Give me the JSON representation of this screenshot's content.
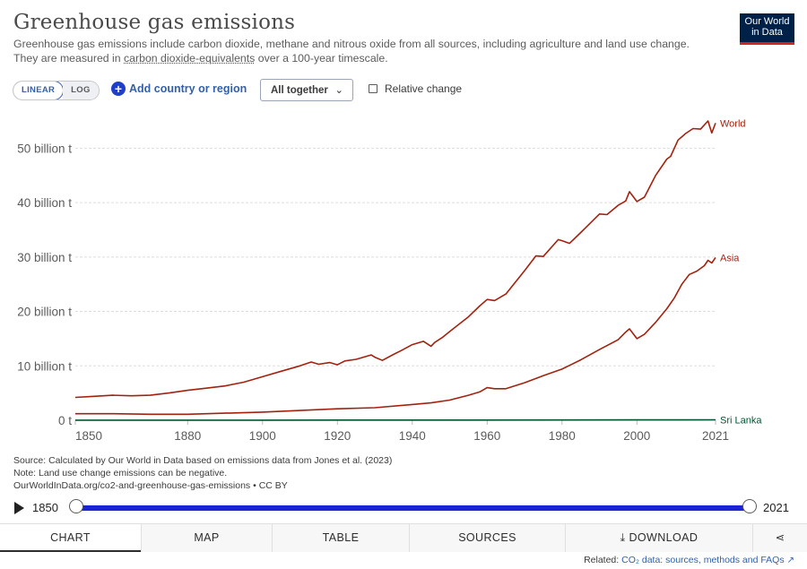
{
  "header": {
    "title": "Greenhouse gas emissions",
    "subtitle_part1": "Greenhouse gas emissions include carbon dioxide, methane and nitrous oxide from all sources, including agriculture and land use change.",
    "subtitle_part2": "They are measured in ",
    "subtitle_link": "carbon dioxide-equivalents",
    "subtitle_part3": " over a 100-year timescale.",
    "logo_line1": "Our World",
    "logo_line2": "in Data"
  },
  "controls": {
    "scale_linear": "LINEAR",
    "scale_log": "LOG",
    "add_country": "Add country or region",
    "dropdown_value": "All together",
    "relative_change": "Relative change"
  },
  "chart_data": {
    "type": "line",
    "title": "Greenhouse gas emissions",
    "ylim": [
      0,
      55
    ],
    "xlim": [
      1850,
      2021
    ],
    "y_ticks": [
      0,
      10,
      20,
      30,
      40,
      50
    ],
    "y_tick_labels": [
      "0 t",
      "10 billion t",
      "20 billion t",
      "30 billion t",
      "40 billion t",
      "50 billion t"
    ],
    "x_ticks": [
      1850,
      1880,
      1900,
      1920,
      1940,
      1960,
      1980,
      2000,
      2021
    ],
    "x_tick_labels": [
      "1850",
      "1880",
      "1900",
      "1920",
      "1940",
      "1960",
      "1980",
      "2000",
      "2021"
    ],
    "grid": "horizontal dashed",
    "legend": "labels at line ends",
    "series": [
      {
        "name": "World",
        "color": "#a2220f",
        "x": [
          1850,
          1855,
          1860,
          1865,
          1870,
          1875,
          1880,
          1885,
          1890,
          1895,
          1900,
          1905,
          1910,
          1913,
          1915,
          1918,
          1920,
          1922,
          1925,
          1929,
          1930,
          1932,
          1935,
          1937,
          1940,
          1943,
          1945,
          1946,
          1948,
          1950,
          1955,
          1958,
          1960,
          1962,
          1965,
          1970,
          1973,
          1975,
          1979,
          1980,
          1982,
          1985,
          1990,
          1992,
          1995,
          1997,
          1998,
          2000,
          2002,
          2005,
          2008,
          2009,
          2011,
          2013,
          2015,
          2017,
          2019,
          2020,
          2021
        ],
        "values": [
          4.2,
          4.4,
          4.6,
          4.5,
          4.6,
          5.0,
          5.5,
          5.9,
          6.3,
          7.0,
          8.0,
          9.0,
          10.0,
          10.7,
          10.3,
          10.6,
          10.2,
          10.9,
          11.2,
          12.0,
          11.6,
          11.0,
          12.1,
          12.8,
          13.9,
          14.5,
          13.6,
          14.3,
          15.2,
          16.3,
          19.0,
          21.0,
          22.2,
          22.0,
          23.2,
          27.5,
          30.2,
          30.1,
          33.2,
          33.0,
          32.5,
          34.5,
          37.9,
          37.8,
          39.5,
          40.3,
          42.0,
          40.2,
          41.0,
          45.0,
          48.0,
          48.5,
          51.5,
          52.7,
          53.6,
          53.5,
          55.0,
          52.8,
          54.6
        ]
      },
      {
        "name": "Asia",
        "color": "#a2220f",
        "x": [
          1850,
          1860,
          1870,
          1880,
          1890,
          1900,
          1910,
          1920,
          1930,
          1940,
          1945,
          1950,
          1955,
          1958,
          1960,
          1962,
          1965,
          1970,
          1975,
          1980,
          1985,
          1990,
          1995,
          1997,
          1998,
          2000,
          2002,
          2005,
          2008,
          2010,
          2012,
          2014,
          2016,
          2018,
          2019,
          2020,
          2021
        ],
        "values": [
          1.2,
          1.2,
          1.1,
          1.1,
          1.3,
          1.5,
          1.8,
          2.1,
          2.3,
          2.9,
          3.2,
          3.7,
          4.6,
          5.2,
          6.0,
          5.8,
          5.8,
          6.9,
          8.2,
          9.4,
          11.1,
          13.0,
          14.8,
          16.2,
          16.8,
          15.0,
          15.8,
          18.0,
          20.5,
          22.5,
          25.0,
          26.8,
          27.4,
          28.4,
          29.4,
          28.9,
          29.9
        ]
      },
      {
        "name": "Sri Lanka",
        "color": "#00552f",
        "x": [
          1850,
          1900,
          1950,
          2000,
          2021
        ],
        "values": [
          0.01,
          0.02,
          0.04,
          0.07,
          0.09
        ]
      }
    ]
  },
  "footer": {
    "source_line": "Source: Calculated by Our World in Data based on emissions data from Jones et al. (2023)",
    "note_line": "Note: Land use change emissions can be negative.",
    "url_line": "OurWorldInData.org/co2-and-greenhouse-gas-emissions • CC BY"
  },
  "timeline": {
    "start": "1850",
    "end": "2021"
  },
  "tabs": [
    {
      "label": "CHART"
    },
    {
      "label": "MAP"
    },
    {
      "label": "TABLE"
    },
    {
      "label": "SOURCES"
    },
    {
      "label": "DOWNLOAD"
    }
  ],
  "related": {
    "prefix": "Related: ",
    "link": "CO₂ data: sources, methods and FAQs"
  }
}
